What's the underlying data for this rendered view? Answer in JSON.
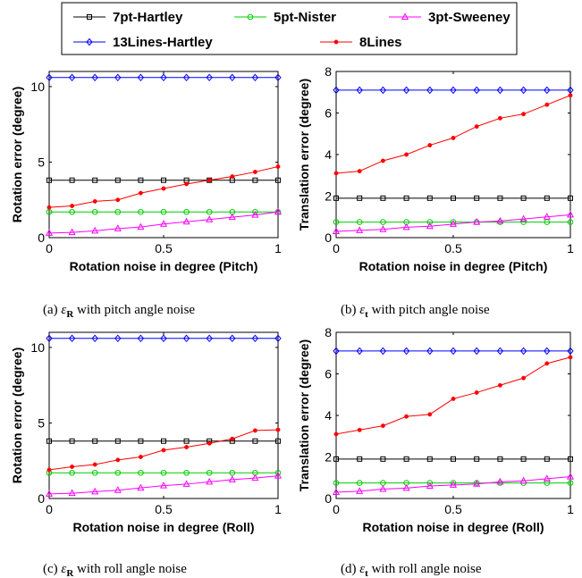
{
  "legend": {
    "entries": [
      {
        "label": "7pt-Hartley",
        "color": "#000000",
        "marker": "square"
      },
      {
        "label": "5pt-Nister",
        "color": "#00cc00",
        "marker": "circle"
      },
      {
        "label": "3pt-Sweeney",
        "color": "#ff00ff",
        "marker": "triangle"
      },
      {
        "label": "13Lines-Hartley",
        "color": "#0000ff",
        "marker": "diamond"
      },
      {
        "label": "8Lines",
        "color": "#ff0000",
        "marker": "dot"
      }
    ]
  },
  "chart_data": [
    {
      "type": "line",
      "x": [
        0,
        0.1,
        0.2,
        0.3,
        0.4,
        0.5,
        0.6,
        0.7,
        0.8,
        0.9,
        1.0
      ],
      "xlabel": "Rotation noise in degree (Pitch)",
      "ylabel": "Rotation error (degree)",
      "xlim": [
        0,
        1
      ],
      "ylim": [
        0,
        11
      ],
      "xticks": [
        "0",
        "0.5",
        "1"
      ],
      "xtick_values": [
        0,
        0.5,
        1
      ],
      "yticks": [
        "0",
        "5",
        "10"
      ],
      "ytick_values": [
        0,
        5,
        10
      ],
      "caption": {
        "prefix": "(a)",
        "symbol": "ε",
        "sub": "R",
        "text": "with pitch angle noise"
      },
      "series": [
        {
          "name": "7pt-Hartley",
          "values": [
            3.8,
            3.8,
            3.8,
            3.8,
            3.8,
            3.8,
            3.8,
            3.8,
            3.8,
            3.8,
            3.8
          ]
        },
        {
          "name": "5pt-Nister",
          "values": [
            1.7,
            1.7,
            1.7,
            1.7,
            1.7,
            1.7,
            1.7,
            1.7,
            1.7,
            1.7,
            1.7
          ]
        },
        {
          "name": "3pt-Sweeney",
          "values": [
            0.3,
            0.35,
            0.45,
            0.6,
            0.7,
            0.9,
            1.05,
            1.2,
            1.35,
            1.5,
            1.7
          ]
        },
        {
          "name": "13Lines-Hartley",
          "values": [
            10.6,
            10.6,
            10.6,
            10.6,
            10.6,
            10.6,
            10.6,
            10.6,
            10.6,
            10.6,
            10.6
          ]
        },
        {
          "name": "8Lines",
          "values": [
            2.0,
            2.1,
            2.4,
            2.5,
            2.95,
            3.25,
            3.55,
            3.8,
            4.05,
            4.35,
            4.7
          ]
        }
      ]
    },
    {
      "type": "line",
      "x": [
        0,
        0.1,
        0.2,
        0.3,
        0.4,
        0.5,
        0.6,
        0.7,
        0.8,
        0.9,
        1.0
      ],
      "xlabel": "Rotation noise in degree (Pitch)",
      "ylabel": "Translation error (degree)",
      "xlim": [
        0,
        1
      ],
      "ylim": [
        0,
        8
      ],
      "xticks": [
        "0",
        "0.5",
        "1"
      ],
      "xtick_values": [
        0,
        0.5,
        1
      ],
      "yticks": [
        "0",
        "2",
        "4",
        "6",
        "8"
      ],
      "ytick_values": [
        0,
        2,
        4,
        6,
        8
      ],
      "caption": {
        "prefix": "(b)",
        "symbol": "ε",
        "sub": "t",
        "text": "with pitch angle noise"
      },
      "series": [
        {
          "name": "7pt-Hartley",
          "values": [
            1.9,
            1.9,
            1.9,
            1.9,
            1.9,
            1.9,
            1.9,
            1.9,
            1.9,
            1.9,
            1.9
          ]
        },
        {
          "name": "5pt-Nister",
          "values": [
            0.75,
            0.75,
            0.75,
            0.75,
            0.75,
            0.75,
            0.75,
            0.75,
            0.75,
            0.75,
            0.75
          ]
        },
        {
          "name": "3pt-Sweeney",
          "values": [
            0.3,
            0.35,
            0.4,
            0.5,
            0.55,
            0.65,
            0.75,
            0.8,
            0.9,
            1.0,
            1.1
          ]
        },
        {
          "name": "13Lines-Hartley",
          "values": [
            7.1,
            7.1,
            7.1,
            7.1,
            7.1,
            7.1,
            7.1,
            7.1,
            7.1,
            7.1,
            7.1
          ]
        },
        {
          "name": "8Lines",
          "values": [
            3.1,
            3.2,
            3.7,
            4.0,
            4.45,
            4.8,
            5.35,
            5.75,
            5.95,
            6.4,
            6.85
          ]
        }
      ]
    },
    {
      "type": "line",
      "x": [
        0,
        0.1,
        0.2,
        0.3,
        0.4,
        0.5,
        0.6,
        0.7,
        0.8,
        0.9,
        1.0
      ],
      "xlabel": "Rotation noise in degree (Roll)",
      "ylabel": "Rotation error (degree)",
      "xlim": [
        0,
        1
      ],
      "ylim": [
        0,
        11
      ],
      "xticks": [
        "0",
        "0.5",
        "1"
      ],
      "xtick_values": [
        0,
        0.5,
        1
      ],
      "yticks": [
        "0",
        "5",
        "10"
      ],
      "ytick_values": [
        0,
        5,
        10
      ],
      "caption": {
        "prefix": "(c)",
        "symbol": "ε",
        "sub": "R",
        "text": "with roll angle noise"
      },
      "series": [
        {
          "name": "7pt-Hartley",
          "values": [
            3.8,
            3.8,
            3.8,
            3.8,
            3.8,
            3.8,
            3.8,
            3.8,
            3.8,
            3.8,
            3.8
          ]
        },
        {
          "name": "5pt-Nister",
          "values": [
            1.7,
            1.7,
            1.7,
            1.7,
            1.7,
            1.7,
            1.7,
            1.7,
            1.7,
            1.7,
            1.7
          ]
        },
        {
          "name": "3pt-Sweeney",
          "values": [
            0.3,
            0.35,
            0.45,
            0.55,
            0.7,
            0.85,
            0.95,
            1.1,
            1.25,
            1.35,
            1.5
          ]
        },
        {
          "name": "13Lines-Hartley",
          "values": [
            10.6,
            10.6,
            10.6,
            10.6,
            10.6,
            10.6,
            10.6,
            10.6,
            10.6,
            10.6,
            10.6
          ]
        },
        {
          "name": "8Lines",
          "values": [
            1.9,
            2.1,
            2.25,
            2.55,
            2.75,
            3.2,
            3.4,
            3.65,
            3.95,
            4.5,
            4.55
          ]
        }
      ]
    },
    {
      "type": "line",
      "x": [
        0,
        0.1,
        0.2,
        0.3,
        0.4,
        0.5,
        0.6,
        0.7,
        0.8,
        0.9,
        1.0
      ],
      "xlabel": "Rotation noise in degree (Roll)",
      "ylabel": "Translation error (degree)",
      "xlim": [
        0,
        1
      ],
      "ylim": [
        0,
        8
      ],
      "xticks": [
        "0",
        "0.5",
        "1"
      ],
      "xtick_values": [
        0,
        0.5,
        1
      ],
      "yticks": [
        "0",
        "2",
        "4",
        "6",
        "8"
      ],
      "ytick_values": [
        0,
        2,
        4,
        6,
        8
      ],
      "caption": {
        "prefix": "(d)",
        "symbol": "ε",
        "sub": "t",
        "text": "with roll angle noise"
      },
      "series": [
        {
          "name": "7pt-Hartley",
          "values": [
            1.9,
            1.9,
            1.9,
            1.9,
            1.9,
            1.9,
            1.9,
            1.9,
            1.9,
            1.9,
            1.9
          ]
        },
        {
          "name": "5pt-Nister",
          "values": [
            0.75,
            0.75,
            0.75,
            0.75,
            0.75,
            0.75,
            0.75,
            0.75,
            0.75,
            0.75,
            0.75
          ]
        },
        {
          "name": "3pt-Sweeney",
          "values": [
            0.3,
            0.35,
            0.45,
            0.5,
            0.6,
            0.65,
            0.7,
            0.8,
            0.85,
            0.95,
            1.05
          ]
        },
        {
          "name": "13Lines-Hartley",
          "values": [
            7.1,
            7.1,
            7.1,
            7.1,
            7.1,
            7.1,
            7.1,
            7.1,
            7.1,
            7.1,
            7.1
          ]
        },
        {
          "name": "8Lines",
          "values": [
            3.1,
            3.3,
            3.5,
            3.95,
            4.05,
            4.8,
            5.1,
            5.45,
            5.8,
            6.5,
            6.8
          ]
        }
      ]
    }
  ]
}
